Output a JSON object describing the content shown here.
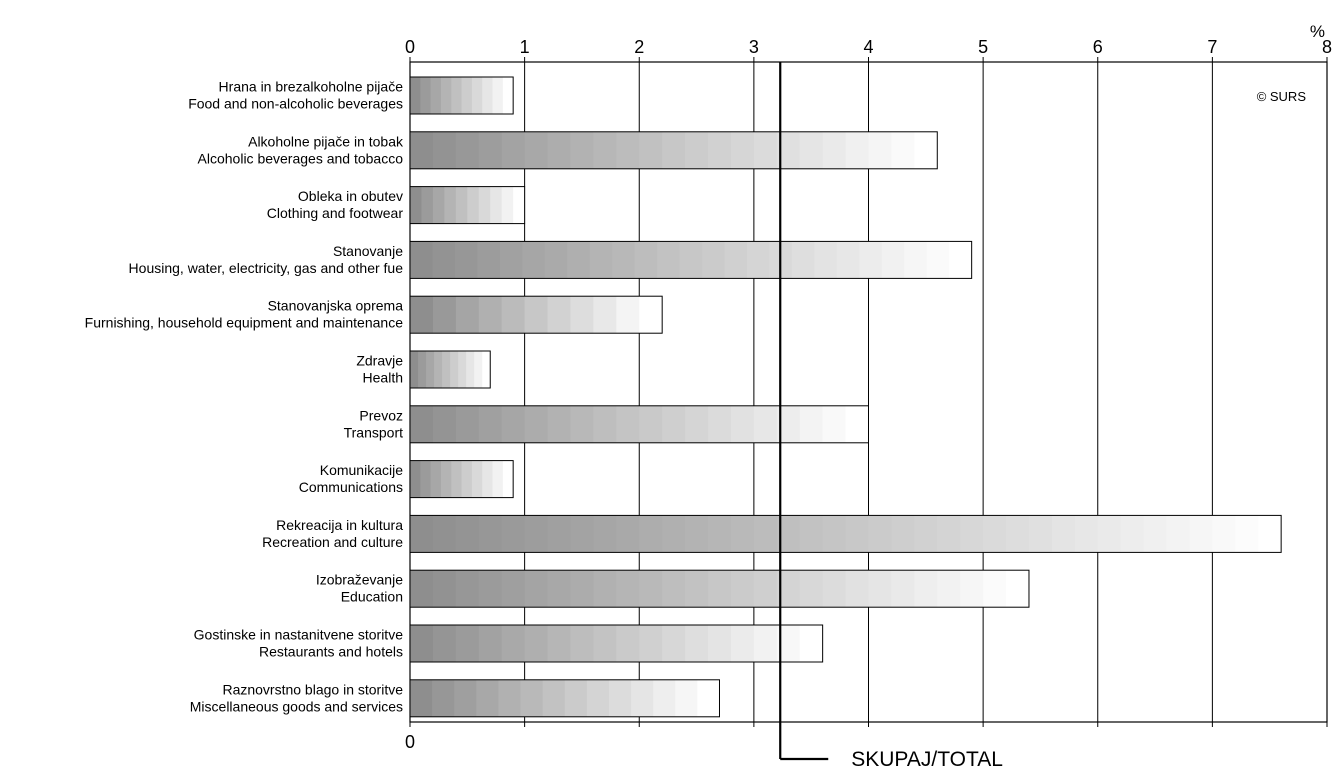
{
  "chart_data": {
    "type": "bar",
    "orientation": "horizontal",
    "unit": "%",
    "xlim": [
      0,
      8
    ],
    "xticks": [
      "0",
      "1",
      "2",
      "3",
      "4",
      "5",
      "6",
      "7",
      "8"
    ],
    "grid": true,
    "categories": [
      {
        "sl": "Hrana in brezalkoholne pijače",
        "en": "Food and non-alcoholic beverages",
        "value": 0.9
      },
      {
        "sl": "Alkoholne pijače in tobak",
        "en": "Alcoholic beverages and tobacco",
        "value": 4.6
      },
      {
        "sl": "Obleka in obutev",
        "en": "Clothing and footwear",
        "value": 1.0
      },
      {
        "sl": "Stanovanje",
        "en": "Housing, water, electricity, gas and other fue",
        "value": 4.9
      },
      {
        "sl": "Stanovanjska oprema",
        "en": "Furnishing, household equipment and maintenance",
        "value": 2.2
      },
      {
        "sl": "Zdravje",
        "en": "Health",
        "value": 0.7
      },
      {
        "sl": "Prevoz",
        "en": "Transport",
        "value": 4.0
      },
      {
        "sl": "Komunikacije",
        "en": "Communications",
        "value": 0.9
      },
      {
        "sl": "Rekreacija in kultura",
        "en": "Recreation and culture",
        "value": 7.6
      },
      {
        "sl": "Izobraževanje",
        "en": "Education",
        "value": 5.4
      },
      {
        "sl": "Gostinske in nastanitvene storitve",
        "en": "Restaurants and hotels",
        "value": 3.6
      },
      {
        "sl": "Raznovrstno blago in storitve",
        "en": "Miscellaneous goods and services",
        "value": 2.7
      }
    ],
    "total": {
      "label": "SKUPAJ/TOTAL",
      "value": 3.23
    },
    "copyright": "© SURS",
    "colors": {
      "bar_dark": "#8e8e8e",
      "bar_light": "#ffffff",
      "grid": "#000000"
    }
  }
}
